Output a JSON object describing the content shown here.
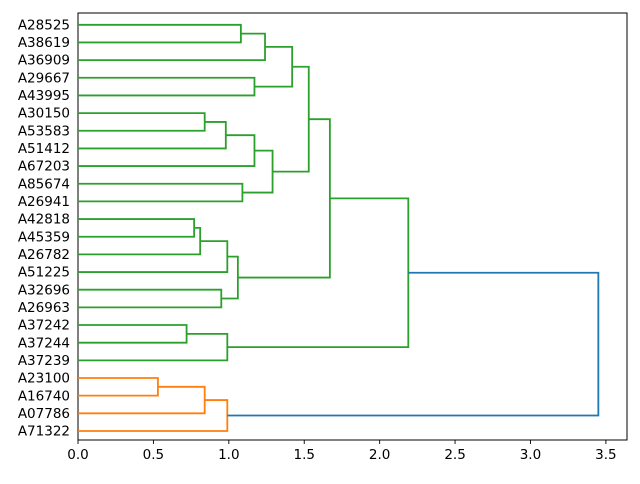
{
  "figure": {
    "background": "#ffffff"
  },
  "chart_data": {
    "type": "dendrogram",
    "orientation": "right",
    "title": "",
    "xlabel": "",
    "ylabel": "",
    "grid": false,
    "legend": false,
    "leaves": [
      "A28525",
      "A38619",
      "A36909",
      "A29667",
      "A43995",
      "A30150",
      "A53583",
      "A51412",
      "A67203",
      "A85674",
      "A26941",
      "A42818",
      "A45359",
      "A26782",
      "A51225",
      "A32696",
      "A26963",
      "A37242",
      "A37244",
      "A37239",
      "A23100",
      "A16740",
      "A07786",
      "A71322"
    ],
    "links": [
      {
        "id": 24,
        "children": [
          0,
          1
        ],
        "height": 1.08,
        "color": "green"
      },
      {
        "id": 25,
        "children": [
          24,
          2
        ],
        "height": 1.24,
        "color": "green"
      },
      {
        "id": 26,
        "children": [
          3,
          4
        ],
        "height": 1.17,
        "color": "green"
      },
      {
        "id": 27,
        "children": [
          25,
          26
        ],
        "height": 1.42,
        "color": "green"
      },
      {
        "id": 28,
        "children": [
          5,
          6
        ],
        "height": 0.84,
        "color": "green"
      },
      {
        "id": 29,
        "children": [
          28,
          7
        ],
        "height": 0.98,
        "color": "green"
      },
      {
        "id": 30,
        "children": [
          29,
          8
        ],
        "height": 1.17,
        "color": "green"
      },
      {
        "id": 31,
        "children": [
          9,
          10
        ],
        "height": 1.09,
        "color": "green"
      },
      {
        "id": 32,
        "children": [
          30,
          31
        ],
        "height": 1.29,
        "color": "green"
      },
      {
        "id": 33,
        "children": [
          27,
          32
        ],
        "height": 1.53,
        "color": "green"
      },
      {
        "id": 34,
        "children": [
          11,
          12
        ],
        "height": 0.77,
        "color": "green"
      },
      {
        "id": 35,
        "children": [
          34,
          13
        ],
        "height": 0.81,
        "color": "green"
      },
      {
        "id": 36,
        "children": [
          35,
          14
        ],
        "height": 0.99,
        "color": "green"
      },
      {
        "id": 37,
        "children": [
          15,
          16
        ],
        "height": 0.95,
        "color": "green"
      },
      {
        "id": 38,
        "children": [
          36,
          37
        ],
        "height": 1.06,
        "color": "green"
      },
      {
        "id": 39,
        "children": [
          33,
          38
        ],
        "height": 1.67,
        "color": "green"
      },
      {
        "id": 40,
        "children": [
          17,
          18
        ],
        "height": 0.72,
        "color": "green"
      },
      {
        "id": 41,
        "children": [
          40,
          19
        ],
        "height": 0.99,
        "color": "green"
      },
      {
        "id": 42,
        "children": [
          39,
          41
        ],
        "height": 2.19,
        "color": "green"
      },
      {
        "id": 43,
        "children": [
          20,
          21
        ],
        "height": 0.53,
        "color": "orange"
      },
      {
        "id": 44,
        "children": [
          43,
          22
        ],
        "height": 0.84,
        "color": "orange"
      },
      {
        "id": 45,
        "children": [
          44,
          23
        ],
        "height": 0.99,
        "color": "orange"
      },
      {
        "id": 46,
        "children": [
          42,
          45
        ],
        "height": 3.45,
        "color": "blue"
      }
    ],
    "xticks": [
      0.0,
      0.5,
      1.0,
      1.5,
      2.0,
      2.5,
      3.0,
      3.5
    ],
    "xtick_labels": [
      "0.0",
      "0.5",
      "1.0",
      "1.5",
      "2.0",
      "2.5",
      "3.0",
      "3.5"
    ],
    "xlim": [
      0,
      3.64
    ],
    "colors": {
      "green": "#2ca02c",
      "orange": "#ff7f0e",
      "blue": "#1f77b4"
    },
    "axis": {
      "spine_color": "#000000",
      "tick_color": "#000000",
      "label_color": "#000000"
    }
  }
}
